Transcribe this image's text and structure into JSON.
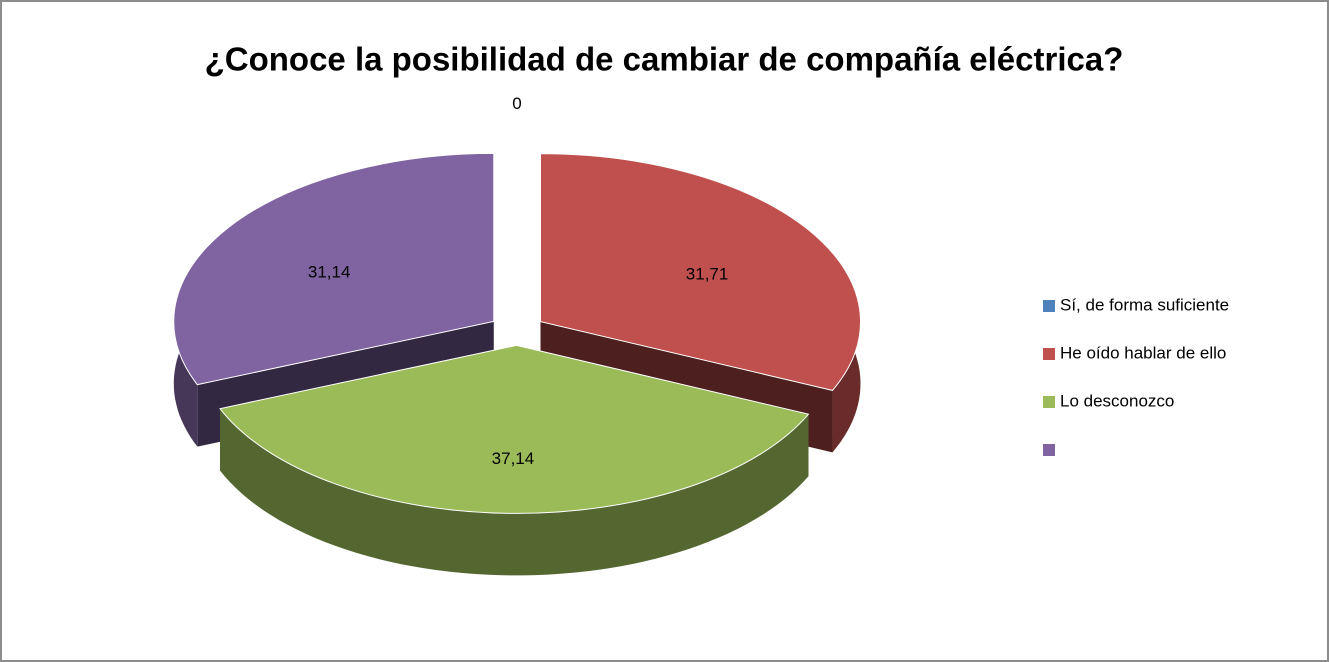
{
  "chart_data": {
    "type": "pie",
    "title": "¿Conoce la posibilidad  de cambiar de compañía eléctrica?",
    "categories": [
      "Sí, de forma suficiente",
      "He oído hablar de ello",
      "Lo desconozco",
      null
    ],
    "values": [
      0,
      31.71,
      37.14,
      31.14
    ],
    "value_labels": [
      "0",
      "31,71",
      "37,14",
      "31,14"
    ],
    "colors": [
      "#4f81bd",
      "#c0504d",
      "#9bbb59",
      "#8064a2"
    ],
    "legend": "right"
  }
}
